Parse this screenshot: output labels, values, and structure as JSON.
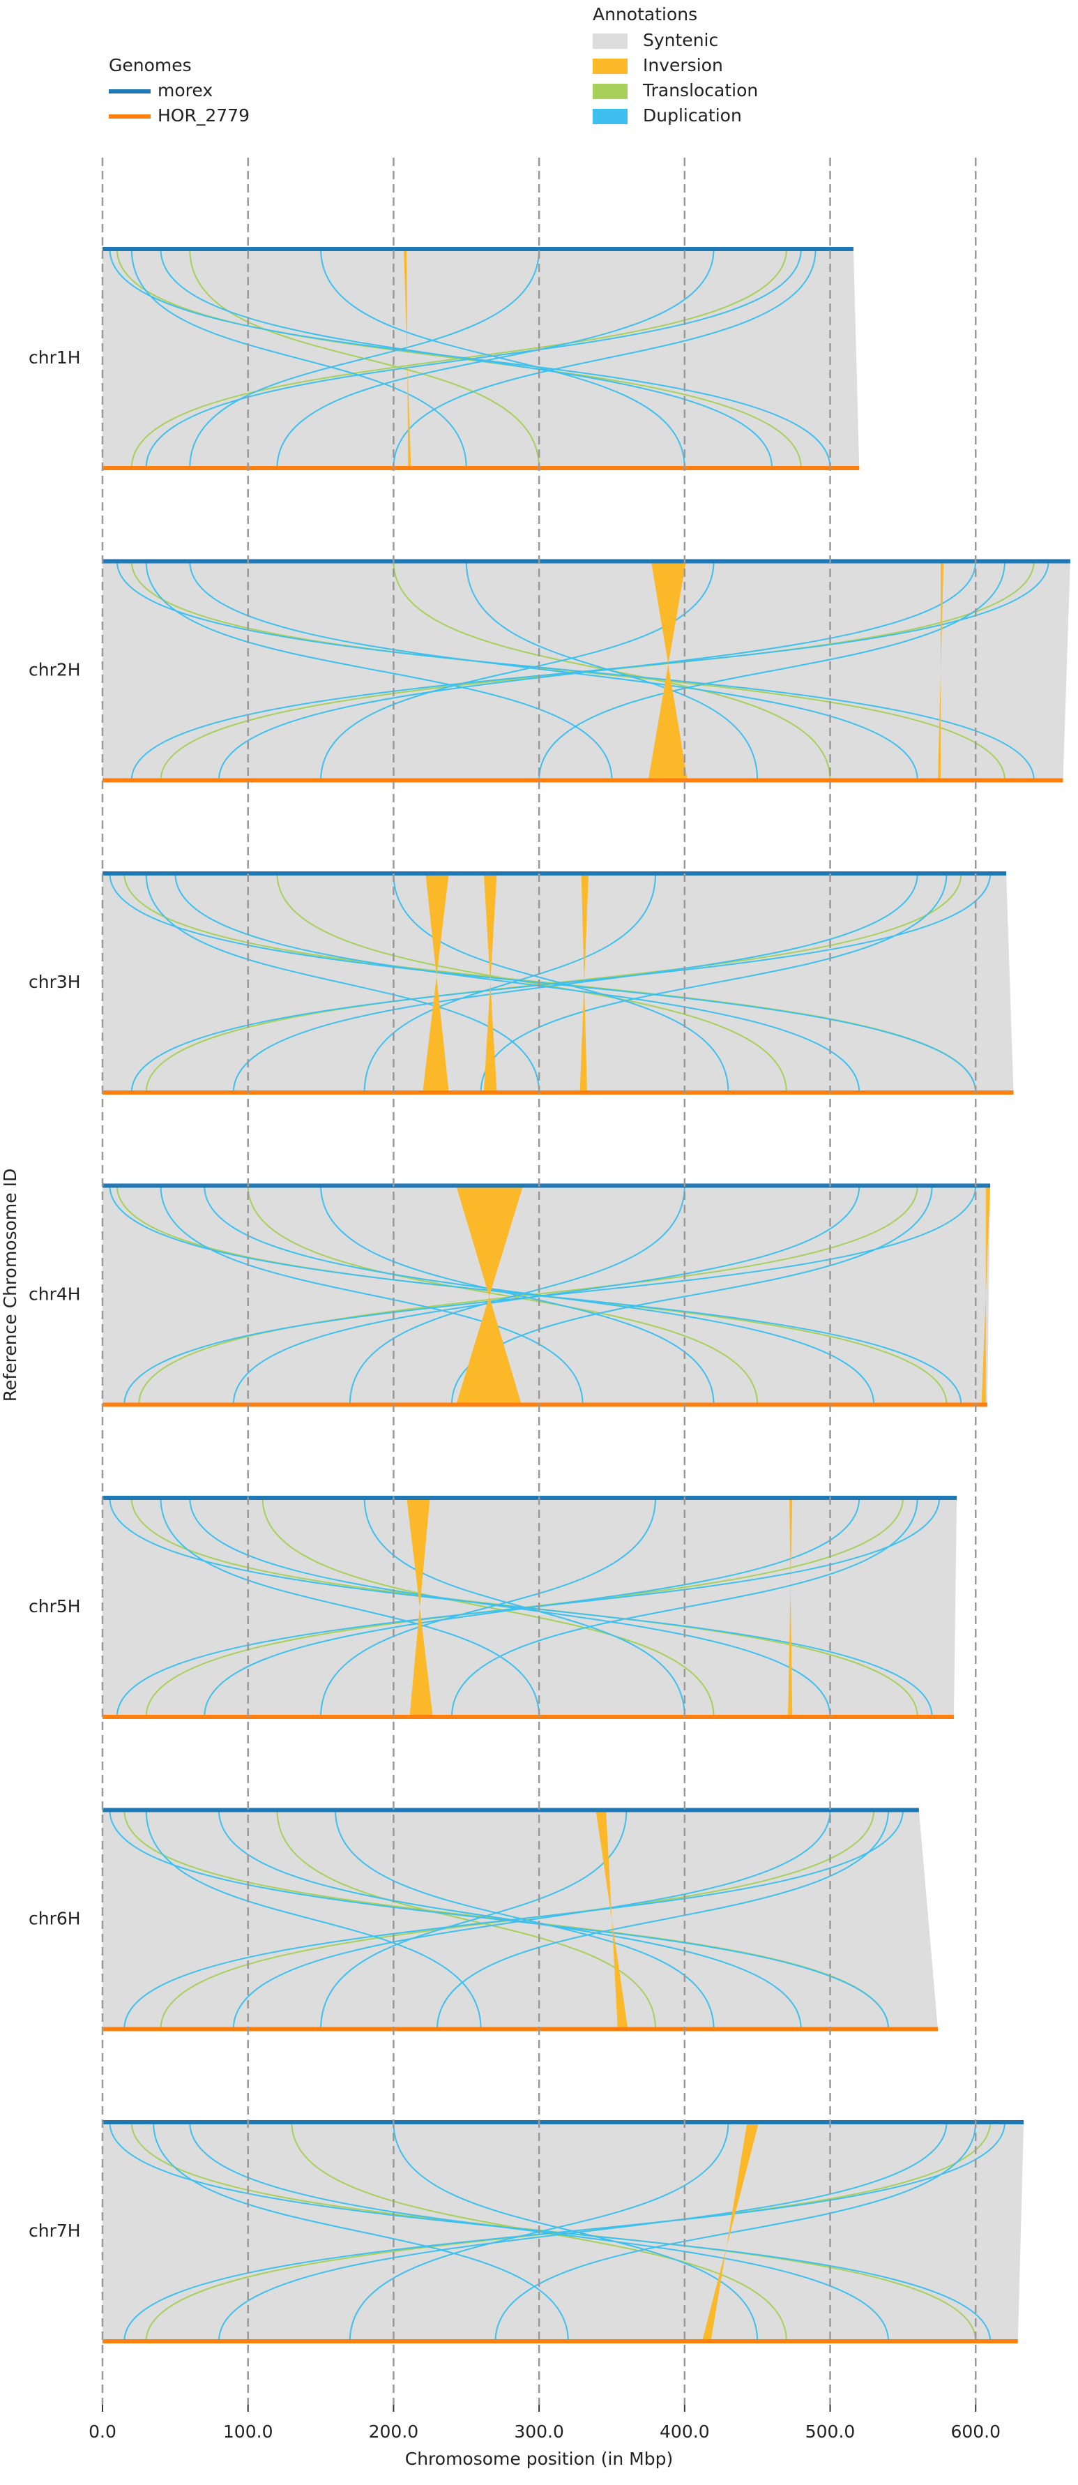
{
  "chart_data": {
    "type": "synteny",
    "xlabel": "Chromosome position (in Mbp)",
    "ylabel": "Reference Chromosome ID",
    "xlim": [
      0,
      666
    ],
    "xticks": [
      {
        "value": 0,
        "label": "0.0"
      },
      {
        "value": 100,
        "label": "100.0"
      },
      {
        "value": 200,
        "label": "200.0"
      },
      {
        "value": 300,
        "label": "300.0"
      },
      {
        "value": 400,
        "label": "400.0"
      },
      {
        "value": 500,
        "label": "500.0"
      },
      {
        "value": 600,
        "label": "600.0"
      }
    ],
    "grid": true,
    "genomes_title": "Genomes",
    "genomes": [
      {
        "name": "morex",
        "color": "#1f77b4"
      },
      {
        "name": "HOR_2779",
        "color": "#ff7f0e"
      }
    ],
    "annotations_title": "Annotations",
    "annotations": [
      {
        "name": "Syntenic",
        "color": "#dddddd"
      },
      {
        "name": "Inversion",
        "color": "#fbb829"
      },
      {
        "name": "Translocation",
        "color": "#a6d05a"
      },
      {
        "name": "Duplication",
        "color": "#3dc0f0"
      }
    ],
    "chromosomes": [
      {
        "name": "chr1H",
        "lengths": [
          516,
          520
        ],
        "inversions": [
          [
            207,
            209,
            210,
            212
          ]
        ],
        "translocations": [
          [
            10,
            480
          ],
          [
            470,
            20
          ],
          [
            60,
            300
          ]
        ],
        "duplications": [
          [
            5,
            500
          ],
          [
            40,
            460
          ],
          [
            480,
            30
          ],
          [
            300,
            60
          ],
          [
            150,
            400
          ],
          [
            420,
            120
          ],
          [
            20,
            250
          ],
          [
            490,
            200
          ]
        ]
      },
      {
        "name": "chr2H",
        "lengths": [
          665,
          660
        ],
        "inversions": [
          [
            377,
            401,
            375,
            402
          ],
          [
            576,
            578,
            574,
            576
          ]
        ],
        "translocations": [
          [
            20,
            620
          ],
          [
            640,
            40
          ],
          [
            200,
            500
          ]
        ],
        "duplications": [
          [
            10,
            640
          ],
          [
            650,
            20
          ],
          [
            60,
            560
          ],
          [
            600,
            80
          ],
          [
            250,
            450
          ],
          [
            420,
            150
          ],
          [
            30,
            350
          ],
          [
            620,
            300
          ]
        ]
      },
      {
        "name": "chr3H",
        "lengths": [
          621,
          626
        ],
        "inversions": [
          [
            222,
            238,
            220,
            238
          ],
          [
            262,
            271,
            262,
            271
          ],
          [
            329,
            334,
            328,
            333
          ]
        ],
        "translocations": [
          [
            15,
            600
          ],
          [
            590,
            30
          ],
          [
            120,
            470
          ]
        ],
        "duplications": [
          [
            5,
            600
          ],
          [
            610,
            20
          ],
          [
            50,
            520
          ],
          [
            560,
            90
          ],
          [
            200,
            430
          ],
          [
            380,
            180
          ],
          [
            30,
            300
          ],
          [
            580,
            260
          ]
        ]
      },
      {
        "name": "chr4H",
        "lengths": [
          610,
          608
        ],
        "inversions": [
          [
            243,
            289,
            243,
            288
          ],
          [
            607,
            610,
            604,
            607
          ]
        ],
        "translocations": [
          [
            10,
            580
          ],
          [
            560,
            25
          ],
          [
            100,
            450
          ]
        ],
        "duplications": [
          [
            5,
            590
          ],
          [
            600,
            15
          ],
          [
            70,
            530
          ],
          [
            520,
            90
          ],
          [
            150,
            420
          ],
          [
            400,
            170
          ],
          [
            40,
            330
          ],
          [
            570,
            240
          ]
        ]
      },
      {
        "name": "chr5H",
        "lengths": [
          587,
          585
        ],
        "inversions": [
          [
            209,
            225,
            211,
            227
          ],
          [
            472,
            474,
            471,
            474
          ]
        ],
        "translocations": [
          [
            20,
            560
          ],
          [
            550,
            30
          ],
          [
            110,
            420
          ]
        ],
        "duplications": [
          [
            5,
            570
          ],
          [
            575,
            10
          ],
          [
            60,
            500
          ],
          [
            520,
            70
          ],
          [
            180,
            400
          ],
          [
            380,
            150
          ],
          [
            40,
            300
          ],
          [
            560,
            240
          ]
        ]
      },
      {
        "name": "chr6H",
        "lengths": [
          561,
          574
        ],
        "inversions": [
          [
            339,
            346,
            354,
            361
          ]
        ],
        "translocations": [
          [
            15,
            540
          ],
          [
            530,
            40
          ],
          [
            120,
            380
          ]
        ],
        "duplications": [
          [
            5,
            540
          ],
          [
            550,
            15
          ],
          [
            80,
            480
          ],
          [
            500,
            90
          ],
          [
            160,
            420
          ],
          [
            360,
            150
          ],
          [
            30,
            260
          ],
          [
            540,
            230
          ]
        ]
      },
      {
        "name": "chr7H",
        "lengths": [
          633,
          629
        ],
        "inversions": [
          [
            443,
            451,
            412,
            418
          ]
        ],
        "translocations": [
          [
            20,
            600
          ],
          [
            610,
            30
          ],
          [
            130,
            470
          ]
        ],
        "duplications": [
          [
            5,
            610
          ],
          [
            620,
            15
          ],
          [
            60,
            540
          ],
          [
            580,
            80
          ],
          [
            200,
            450
          ],
          [
            430,
            170
          ],
          [
            35,
            320
          ],
          [
            600,
            270
          ]
        ]
      }
    ]
  }
}
